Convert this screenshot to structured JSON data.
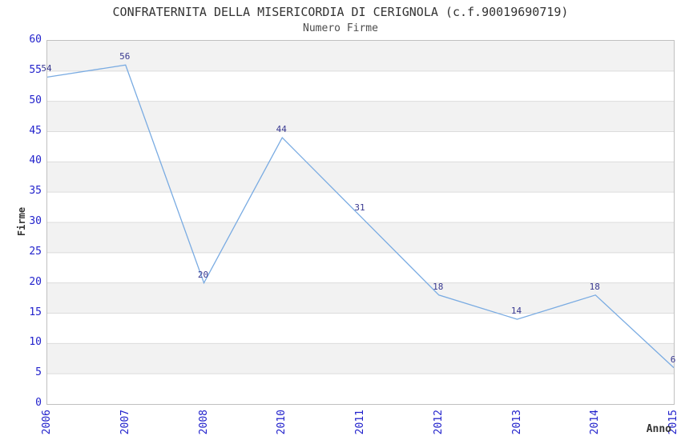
{
  "chart_data": {
    "type": "line",
    "title": "CONFRATERNITA DELLA MISERICORDIA DI CERIGNOLA (c.f.90019690719)",
    "subtitle": "Numero Firme",
    "xlabel": "Anno",
    "ylabel": "Firme",
    "categories": [
      "2006",
      "2007",
      "2008",
      "2010",
      "2011",
      "2012",
      "2013",
      "2014",
      "2015"
    ],
    "values": [
      54,
      56,
      20,
      44,
      31,
      18,
      14,
      18,
      6
    ],
    "ylim": [
      0,
      60
    ],
    "ytick_step": 5,
    "grid": "horizontal gridlines with alternating gray/white bands every 5 units",
    "legend": "none",
    "markers": "none",
    "colors": {
      "line": "#79abe2",
      "tick_label": "#2222cc",
      "value_label": "#383890",
      "band_gray": "#f2f2f2",
      "band_white": "#ffffff",
      "gridline": "#dcdcdc",
      "plot_border": "#c0c0c0",
      "title": "#333333",
      "subtitle": "#4d4d4d",
      "axis_title": "#333333"
    }
  }
}
